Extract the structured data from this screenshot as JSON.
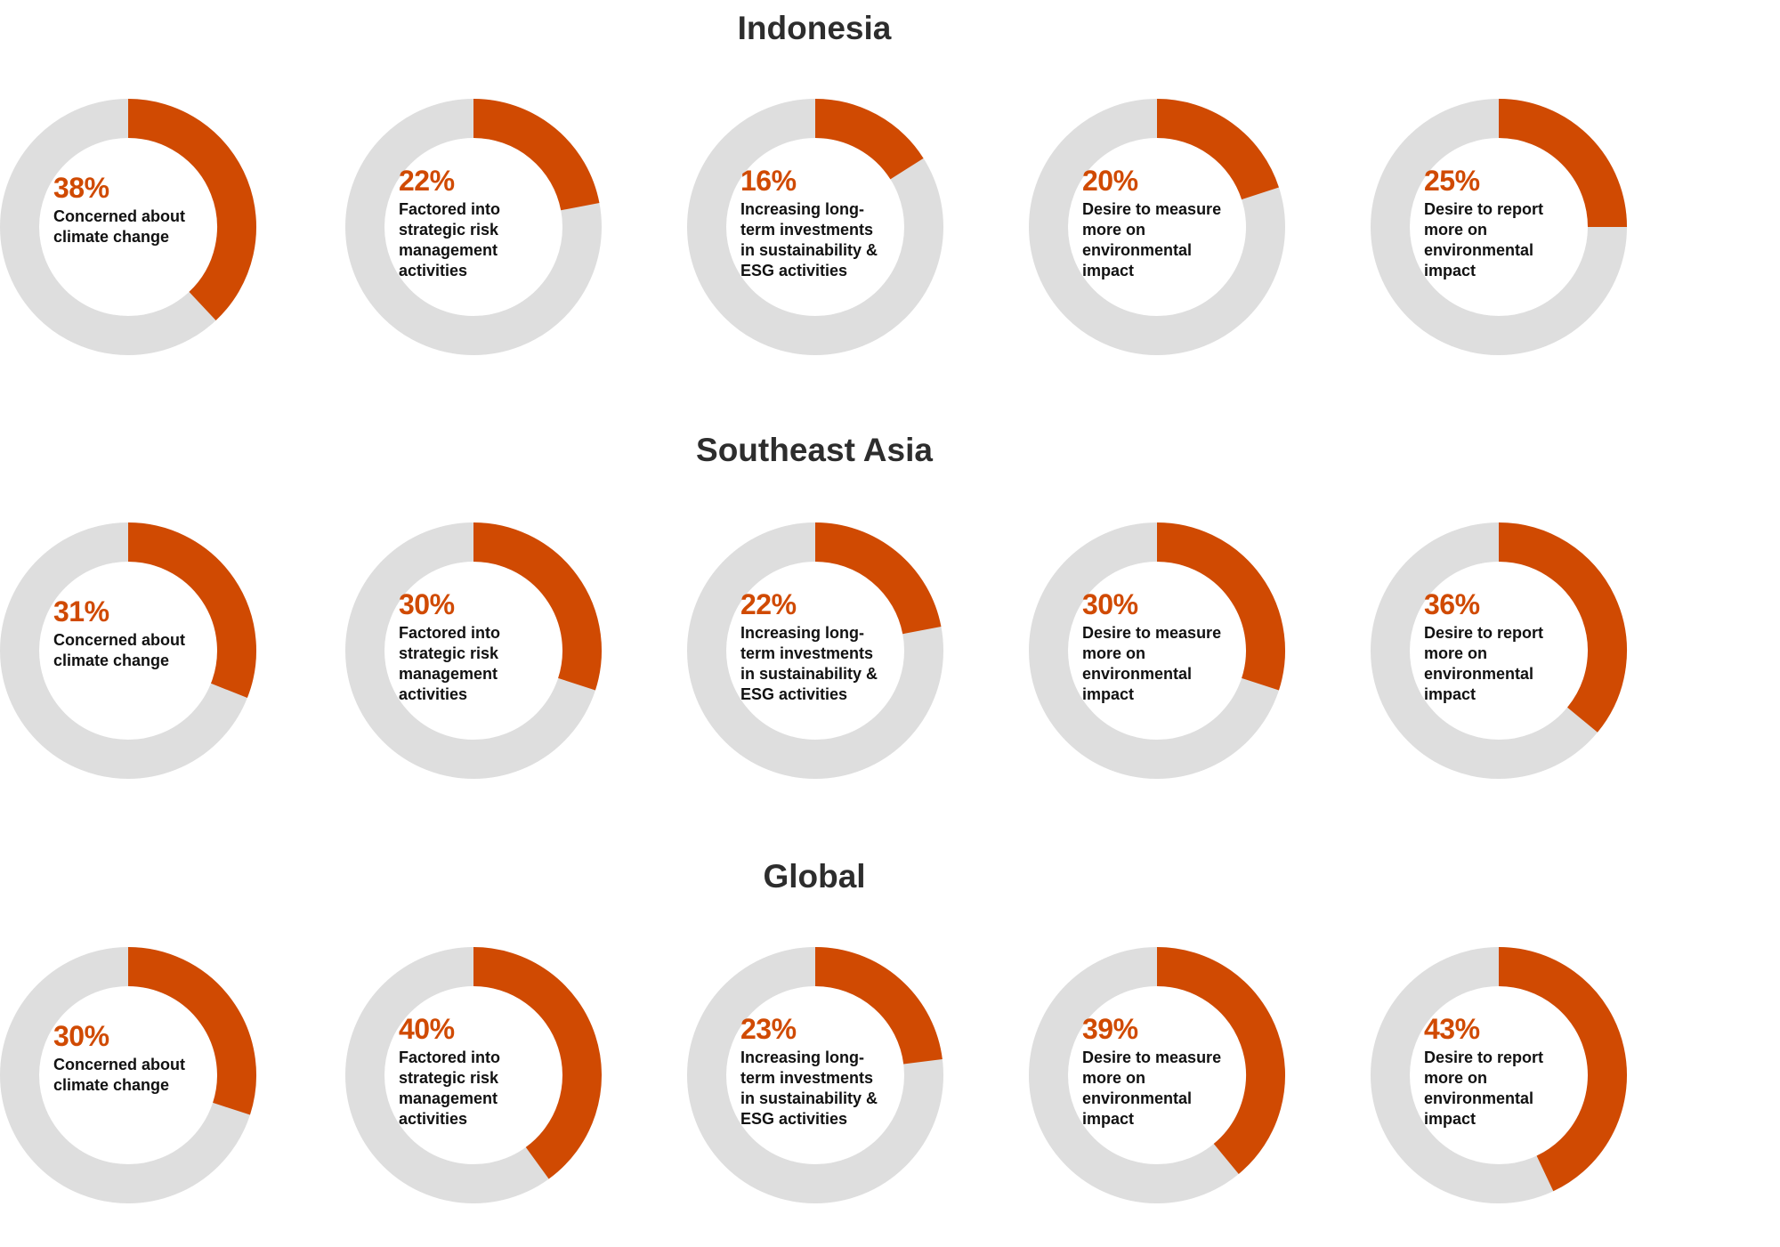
{
  "colors": {
    "accent": "#d04a02",
    "track": "#dedede",
    "title": "#2d2d2d",
    "text": "#111111"
  },
  "chart_data": [
    {
      "type": "pie",
      "title": "Indonesia",
      "categories": [
        "Concerned about climate change",
        "Factored into strategic risk management activities",
        "Increasing long-term investments in sustainability & ESG activities",
        "Desire to measure more on environmental impact",
        "Desire to report more on environmental impact"
      ],
      "values": [
        38,
        22,
        16,
        20,
        25
      ],
      "value_labels": [
        "38%",
        "22%",
        "16%",
        "20%",
        "25%"
      ],
      "label_lines": [
        "Concerned about\nclimate change",
        "Factored into\nstrategic risk\nmanagement\nactivities",
        "Increasing long-\nterm investments\nin sustainability &\nESG activities",
        "Desire to measure\nmore on\nenvironmental\nimpact",
        "Desire to report\nmore on\nenvironmental\nimpact"
      ]
    },
    {
      "type": "pie",
      "title": "Southeast Asia",
      "categories": [
        "Concerned about climate change",
        "Factored into strategic risk management activities",
        "Increasing long-term investments in sustainability & ESG activities",
        "Desire to measure more on environmental impact",
        "Desire to report more on environmental impact"
      ],
      "values": [
        31,
        30,
        22,
        30,
        36
      ],
      "value_labels": [
        "31%",
        "30%",
        "22%",
        "30%",
        "36%"
      ],
      "label_lines": [
        "Concerned about\nclimate change",
        "Factored into\nstrategic risk\nmanagement\nactivities",
        "Increasing long-\nterm investments\nin sustainability &\nESG activities",
        "Desire to measure\nmore on\nenvironmental\nimpact",
        "Desire to report\nmore on\nenvironmental\nimpact"
      ]
    },
    {
      "type": "pie",
      "title": "Global",
      "categories": [
        "Concerned about climate change",
        "Factored into strategic risk management activities",
        "Increasing long-term investments in sustainability & ESG activities",
        "Desire to measure more on environmental impact",
        "Desire to report more on environmental impact"
      ],
      "values": [
        30,
        40,
        23,
        39,
        43
      ],
      "value_labels": [
        "30%",
        "40%",
        "23%",
        "39%",
        "43%"
      ],
      "label_lines": [
        "Concerned about\nclimate change",
        "Factored into\nstrategic risk\nmanagement\nactivities",
        "Increasing long-\nterm investments\nin sustainability &\nESG activities",
        "Desire to measure\nmore on\nenvironmental\nimpact",
        "Desire to report\nmore on\nenvironmental\nimpact"
      ]
    }
  ]
}
